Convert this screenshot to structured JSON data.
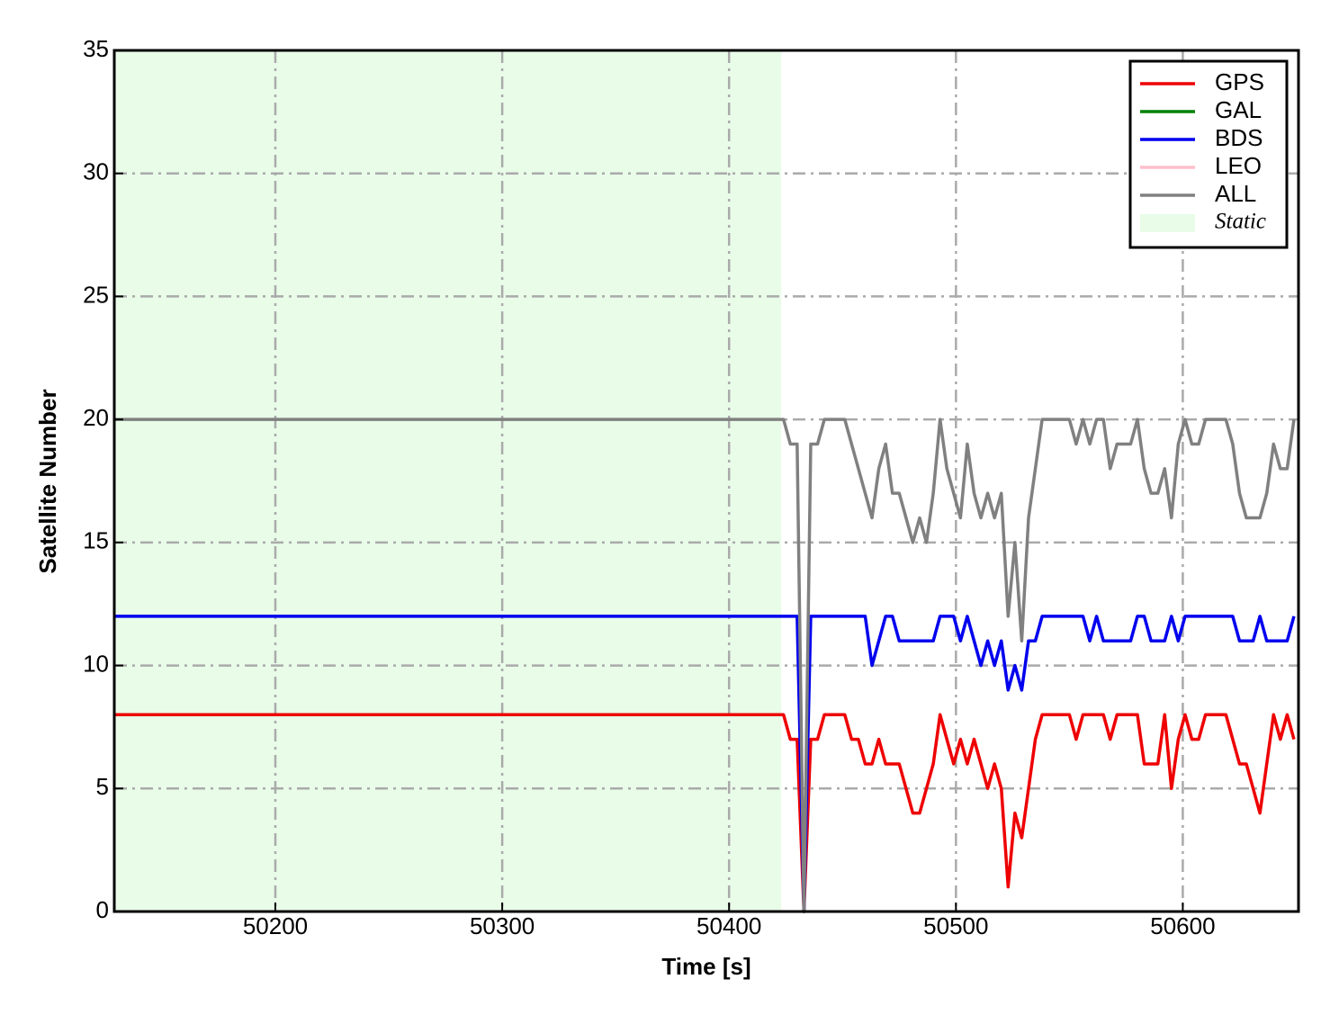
{
  "chart_data": {
    "type": "line",
    "xlabel": "Time [s]",
    "ylabel": "Satellite Number",
    "xlim": [
      50129,
      50651
    ],
    "ylim": [
      0,
      35
    ],
    "xticks": [
      50200,
      50300,
      50400,
      50500,
      50600
    ],
    "yticks": [
      0,
      5,
      10,
      15,
      20,
      25,
      30,
      35
    ],
    "grid": true,
    "legend": "upper right",
    "x": [
      50129,
      50424,
      50427,
      50430,
      50433,
      50436,
      50439,
      50442,
      50445,
      50448,
      50451,
      50454,
      50457,
      50460,
      50463,
      50466,
      50469,
      50472,
      50475,
      50478,
      50481,
      50484,
      50487,
      50490,
      50493,
      50496,
      50499,
      50502,
      50505,
      50508,
      50511,
      50514,
      50517,
      50520,
      50523,
      50526,
      50529,
      50532,
      50535,
      50538,
      50541,
      50544,
      50547,
      50550,
      50553,
      50556,
      50559,
      50562,
      50565,
      50568,
      50571,
      50574,
      50577,
      50580,
      50583,
      50586,
      50589,
      50592,
      50595,
      50598,
      50601,
      50604,
      50607,
      50610,
      50613,
      50616,
      50619,
      50622,
      50625,
      50628,
      50631,
      50634,
      50637,
      50640,
      50643,
      50646,
      50649
    ],
    "series": [
      {
        "name": "GPS",
        "color": "#ee0000",
        "values": [
          8,
          8,
          7,
          7,
          0,
          7,
          7,
          8,
          8,
          8,
          8,
          7,
          7,
          6,
          6,
          7,
          6,
          6,
          6,
          5,
          4,
          4,
          5,
          6,
          8,
          7,
          6,
          7,
          6,
          7,
          6,
          5,
          6,
          5,
          1,
          4,
          3,
          5,
          7,
          8,
          8,
          8,
          8,
          8,
          7,
          8,
          8,
          8,
          8,
          7,
          8,
          8,
          8,
          8,
          6,
          6,
          6,
          8,
          5,
          7,
          8,
          7,
          7,
          8,
          8,
          8,
          8,
          7,
          6,
          6,
          5,
          4,
          6,
          8,
          7,
          8,
          7
        ]
      },
      {
        "name": "GAL",
        "color": "#008000",
        "values": [
          null,
          null,
          null,
          null,
          null,
          null,
          null,
          null,
          null,
          null,
          null,
          null,
          null,
          null,
          null,
          null,
          null,
          null,
          null,
          null,
          null,
          null,
          null,
          null,
          null,
          null,
          null,
          null,
          null,
          null,
          null,
          null,
          null,
          null,
          null,
          null,
          null,
          null,
          null,
          null,
          null,
          null,
          null,
          null,
          null,
          null,
          null,
          null,
          null,
          null,
          null,
          null,
          null,
          null,
          null,
          null,
          null,
          null,
          null,
          null,
          null,
          null,
          null,
          null,
          null,
          null,
          null,
          null,
          null,
          null,
          null,
          null,
          null,
          null,
          null,
          null,
          null
        ]
      },
      {
        "name": "BDS",
        "color": "#0000ee",
        "values": [
          12,
          12,
          12,
          12,
          0,
          12,
          12,
          12,
          12,
          12,
          12,
          12,
          12,
          12,
          10,
          11,
          12,
          12,
          11,
          11,
          11,
          11,
          11,
          11,
          12,
          12,
          12,
          11,
          12,
          11,
          10,
          11,
          10,
          11,
          9,
          10,
          9,
          11,
          11,
          12,
          12,
          12,
          12,
          12,
          12,
          12,
          11,
          12,
          11,
          11,
          11,
          11,
          11,
          12,
          12,
          11,
          11,
          11,
          12,
          11,
          12,
          12,
          12,
          12,
          12,
          12,
          12,
          12,
          11,
          11,
          11,
          12,
          11,
          11,
          11,
          11,
          12
        ]
      },
      {
        "name": "LEO",
        "color": "#ffc0cb",
        "values": [
          null,
          null,
          null,
          null,
          null,
          null,
          null,
          null,
          null,
          null,
          null,
          null,
          null,
          null,
          null,
          null,
          null,
          null,
          null,
          null,
          null,
          null,
          null,
          null,
          null,
          null,
          null,
          null,
          null,
          null,
          null,
          null,
          null,
          null,
          null,
          null,
          null,
          null,
          null,
          null,
          null,
          null,
          null,
          null,
          null,
          null,
          null,
          null,
          null,
          null,
          null,
          null,
          null,
          null,
          null,
          null,
          null,
          null,
          null,
          null,
          null,
          null,
          null,
          null,
          null,
          null,
          null,
          null,
          null,
          null,
          null,
          null,
          null,
          null,
          null,
          null,
          null
        ]
      },
      {
        "name": "ALL",
        "color": "#808080",
        "values": [
          20,
          20,
          19,
          19,
          0,
          19,
          19,
          20,
          20,
          20,
          20,
          19,
          18,
          17,
          16,
          18,
          19,
          17,
          17,
          16,
          15,
          16,
          15,
          17,
          20,
          18,
          17,
          16,
          19,
          17,
          16,
          17,
          16,
          17,
          12,
          15,
          11,
          16,
          18,
          20,
          20,
          20,
          20,
          20,
          19,
          20,
          19,
          20,
          20,
          18,
          19,
          19,
          19,
          20,
          18,
          17,
          17,
          18,
          16,
          19,
          20,
          19,
          19,
          20,
          20,
          20,
          20,
          19,
          17,
          16,
          16,
          16,
          17,
          19,
          18,
          18,
          20
        ]
      }
    ],
    "static": {
      "label": "Static",
      "range": [
        50129,
        50423
      ],
      "color": "#e8fce8"
    }
  }
}
